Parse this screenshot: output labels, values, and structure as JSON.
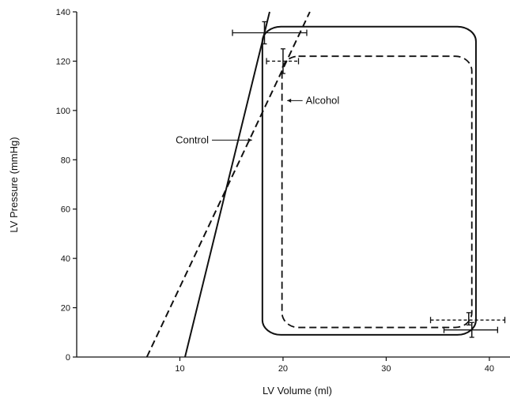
{
  "chart_data": {
    "type": "line",
    "title": "",
    "xlabel": "LV Volume (ml)",
    "ylabel": "LV Pressure (mmHg)",
    "xlim": [
      0,
      42
    ],
    "ylim": [
      0,
      140
    ],
    "x_ticks": [
      10,
      20,
      30,
      40
    ],
    "y_ticks": [
      0,
      20,
      40,
      60,
      80,
      100,
      120,
      140
    ],
    "grid": false,
    "legend": "none",
    "series": [
      {
        "kind": "espvr",
        "style": "solid",
        "points": [
          [
            10.5,
            0
          ],
          [
            18.7,
            140
          ]
        ]
      },
      {
        "kind": "espvr",
        "style": "dashed",
        "points": [
          [
            6.8,
            0
          ],
          [
            22.6,
            140
          ]
        ]
      },
      {
        "kind": "pv-loop",
        "style": "solid",
        "x_range": [
          18.0,
          38.7
        ],
        "y_range": [
          9,
          134
        ],
        "corner": [
          1.8,
          6
        ]
      },
      {
        "kind": "pv-loop",
        "style": "dashed",
        "x_range": [
          19.9,
          38.3
        ],
        "y_range": [
          12,
          122
        ],
        "corner": [
          1.6,
          6
        ]
      }
    ],
    "error_bars": [
      {
        "x": 18.2,
        "y": 131.5,
        "xerr": [
          15.1,
          22.3
        ],
        "yerr": [
          127,
          136
        ],
        "style": "solid"
      },
      {
        "x": 20.0,
        "y": 120.0,
        "xerr": [
          18.4,
          21.5
        ],
        "yerr": [
          115,
          125
        ],
        "style": "dashed"
      },
      {
        "x": 38.0,
        "y": 15.0,
        "xerr": [
          34.3,
          41.5
        ],
        "yerr": [
          13,
          18
        ],
        "style": "dashed"
      },
      {
        "x": 38.3,
        "y": 11.0,
        "xerr": [
          35.6,
          40.8
        ],
        "yerr": [
          8,
          14
        ],
        "style": "solid"
      }
    ],
    "annotations": [
      {
        "text": "Control",
        "x": 12.8,
        "y": 88,
        "arrow_to": [
          17.0,
          88
        ]
      },
      {
        "text": "Alcohol",
        "x": 22.2,
        "y": 104,
        "arrow_to": [
          20.4,
          104
        ]
      }
    ]
  }
}
